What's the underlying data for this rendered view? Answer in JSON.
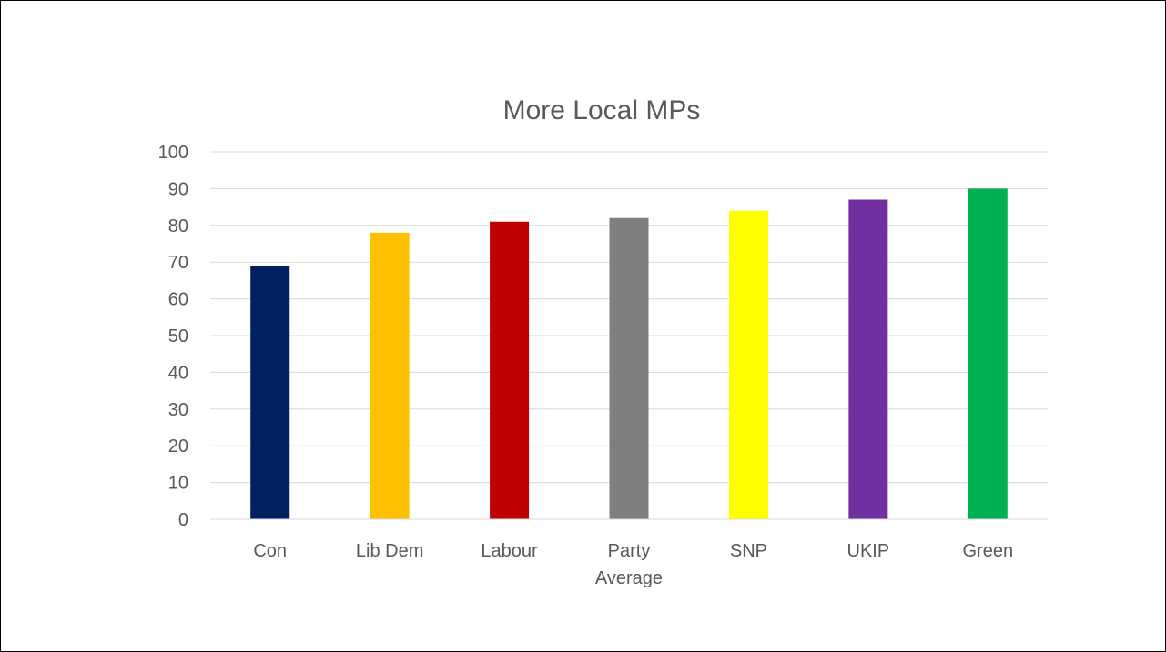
{
  "chart_data": {
    "type": "bar",
    "title": "More Local MPs",
    "xlabel": "",
    "ylabel": "",
    "categories": [
      "Con",
      "Lib Dem",
      "Labour",
      "Party Average",
      "SNP",
      "UKIP",
      "Green"
    ],
    "category_lines": [
      [
        "Con"
      ],
      [
        "Lib Dem"
      ],
      [
        "Labour"
      ],
      [
        "Party",
        "Average"
      ],
      [
        "SNP"
      ],
      [
        "UKIP"
      ],
      [
        "Green"
      ]
    ],
    "values": [
      69,
      78,
      81,
      82,
      84,
      87,
      90
    ],
    "colors": [
      "#002060",
      "#ffc000",
      "#c00000",
      "#7f7f7f",
      "#ffff00",
      "#7030a0",
      "#00b050"
    ],
    "ylim": [
      0,
      100
    ],
    "yticks": [
      0,
      10,
      20,
      30,
      40,
      50,
      60,
      70,
      80,
      90,
      100
    ],
    "grid": true,
    "legend": "none"
  }
}
